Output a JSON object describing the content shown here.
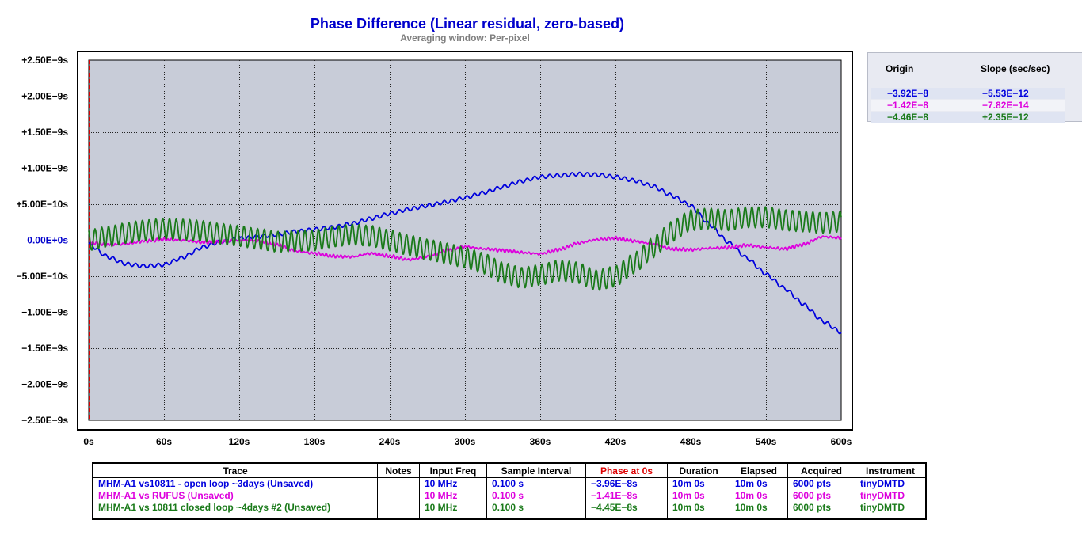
{
  "chart_data": {
    "type": "line",
    "title": "Phase Difference (Linear residual, zero-based)",
    "subtitle": "Averaging window: Per-pixel",
    "x_ticks": [
      "0s",
      "60s",
      "120s",
      "180s",
      "240s",
      "300s",
      "360s",
      "420s",
      "480s",
      "540s",
      "600s"
    ],
    "y_ticks": [
      "+2.50E−9s",
      "+2.00E−9s",
      "+1.50E−9s",
      "+1.00E−9s",
      "+5.00E−10s",
      "0.00E+0s",
      "−5.00E−10s",
      "−1.00E−9s",
      "−1.50E−9s",
      "−2.00E−9s",
      "−2.50E−9s"
    ],
    "xlim": [
      0,
      600
    ],
    "ylim": [
      -2.5e-09,
      2.5e-09
    ],
    "grid": true,
    "plot_bg": "#c8ccd8",
    "series": [
      {
        "name": "MHM-A1 vs10811 - open loop ~3days (Unsaved)",
        "color": "#0000dd",
        "ripple_amp": 2.5e-11,
        "ripple_period": 6.0,
        "x": [
          0,
          15,
          30,
          45,
          60,
          75,
          90,
          105,
          120,
          135,
          150,
          165,
          180,
          195,
          210,
          225,
          240,
          255,
          270,
          285,
          300,
          315,
          330,
          345,
          360,
          375,
          390,
          405,
          420,
          435,
          450,
          465,
          480,
          495,
          510,
          525,
          540,
          555,
          570,
          585,
          600
        ],
        "y": [
          -5e-11,
          -2.3e-10,
          -3.3e-10,
          -3.6e-10,
          -3.4e-10,
          -2.4e-10,
          -1e-10,
          -2e-11,
          2e-11,
          5e-11,
          8e-11,
          1.2e-10,
          1.5e-10,
          1.8e-10,
          2.3e-10,
          3e-10,
          3.7e-10,
          4.3e-10,
          4.8e-10,
          5.3e-10,
          5.9e-10,
          6.6e-10,
          7.4e-10,
          8.2e-10,
          8.8e-10,
          9e-10,
          9.2e-10,
          9.1e-10,
          8.8e-10,
          8.3e-10,
          7.5e-10,
          6.2e-10,
          4.8e-10,
          2.2e-10,
          -3e-11,
          -2.5e-10,
          -4.7e-10,
          -6.7e-10,
          -8.9e-10,
          -1.12e-09,
          -1.28e-09
        ]
      },
      {
        "name": "MHM-A1 vs RUFUS (Unsaved)",
        "color": "#dd00dd",
        "ripple_amp": 1.5e-11,
        "ripple_period": 3.0,
        "x": [
          0,
          15,
          30,
          45,
          60,
          75,
          90,
          105,
          120,
          135,
          150,
          165,
          180,
          195,
          210,
          225,
          240,
          255,
          270,
          285,
          300,
          315,
          330,
          345,
          360,
          375,
          390,
          405,
          420,
          435,
          450,
          465,
          480,
          495,
          510,
          525,
          540,
          555,
          570,
          585,
          600
        ],
        "y": [
          -3e-11,
          -6e-11,
          -5e-11,
          -1e-11,
          1e-11,
          0,
          -3e-11,
          -2e-11,
          0,
          -1e-11,
          -6e-11,
          -1.5e-10,
          -1.8e-10,
          -2.2e-10,
          -2.3e-10,
          -1.8e-10,
          -2.2e-10,
          -2.7e-10,
          -2.3e-10,
          -1.4e-10,
          -9e-11,
          -1.2e-10,
          -1.4e-10,
          -1.7e-10,
          -1.9e-10,
          -1.3e-10,
          -4e-11,
          1e-11,
          3e-11,
          -1e-11,
          -5e-11,
          -1.2e-10,
          -1.3e-10,
          -1.1e-10,
          -1e-10,
          -7e-11,
          -1e-10,
          -1.2e-10,
          -6e-11,
          5e-11,
          3e-11
        ]
      },
      {
        "name": "MHM-A1 vs 10811 closed loop ~4days #2 (Unsaved)",
        "color": "#1a7a1a",
        "ripple_amp": 1.45e-10,
        "ripple_period": 5.4,
        "x": [
          0,
          15,
          30,
          45,
          60,
          75,
          90,
          105,
          120,
          135,
          150,
          165,
          180,
          195,
          210,
          225,
          240,
          255,
          270,
          285,
          300,
          315,
          330,
          345,
          360,
          375,
          390,
          405,
          420,
          435,
          450,
          465,
          480,
          495,
          510,
          525,
          540,
          555,
          570,
          585,
          600
        ],
        "y": [
          0,
          5e-11,
          1e-10,
          1.4e-10,
          1.6e-10,
          1.5e-10,
          1.3e-10,
          9e-11,
          6e-11,
          2e-11,
          -2e-11,
          -1e-11,
          0,
          5e-11,
          8e-11,
          6e-11,
          0,
          -7e-11,
          -1.3e-10,
          -1.8e-10,
          -2.4e-10,
          -3.2e-10,
          -4.5e-10,
          -5.2e-10,
          -4.8e-10,
          -4.2e-10,
          -4.5e-10,
          -5.6e-10,
          -5e-10,
          -3.2e-10,
          -1e-10,
          1.2e-10,
          2.8e-10,
          3e-10,
          2.8e-10,
          3.2e-10,
          3.2e-10,
          2.8e-10,
          2.6e-10,
          2.4e-10,
          2.6e-10
        ]
      }
    ]
  },
  "fit_table": {
    "headers": {
      "origin": "Origin",
      "slope": "Slope (sec/sec)"
    },
    "rows": [
      {
        "origin": "−3.92E−8",
        "slope": "−5.53E−12",
        "color": "#0000dd"
      },
      {
        "origin": "−1.42E−8",
        "slope": "−7.82E−14",
        "color": "#dd00dd"
      },
      {
        "origin": "−4.46E−8",
        "slope": "+2.35E−12",
        "color": "#1a7a1a"
      }
    ]
  },
  "trace_table": {
    "headers": [
      "Trace",
      "Notes",
      "Input Freq",
      "Sample Interval",
      "Phase at 0s",
      "Duration",
      "Elapsed",
      "Acquired",
      "Instrument"
    ],
    "header_highlight_color": "#dd0000",
    "rows": [
      {
        "color": "#0000dd",
        "cells": [
          "MHM-A1 vs10811 - open loop ~3days (Unsaved)",
          "",
          "10 MHz",
          "0.100 s",
          "−3.96E−8s",
          "10m 0s",
          "10m 0s",
          "6000 pts",
          "tinyDMTD"
        ]
      },
      {
        "color": "#dd00dd",
        "cells": [
          "MHM-A1 vs RUFUS (Unsaved)",
          "",
          "10 MHz",
          "0.100 s",
          "−1.41E−8s",
          "10m 0s",
          "10m 0s",
          "6000 pts",
          "tinyDMTD"
        ]
      },
      {
        "color": "#1a7a1a",
        "cells": [
          "MHM-A1 vs 10811 closed loop ~4days #2 (Unsaved)",
          "",
          "10 MHz",
          "0.100 s",
          "−4.45E−8s",
          "10m 0s",
          "10m 0s",
          "6000 pts",
          "tinyDMTD"
        ]
      }
    ]
  }
}
